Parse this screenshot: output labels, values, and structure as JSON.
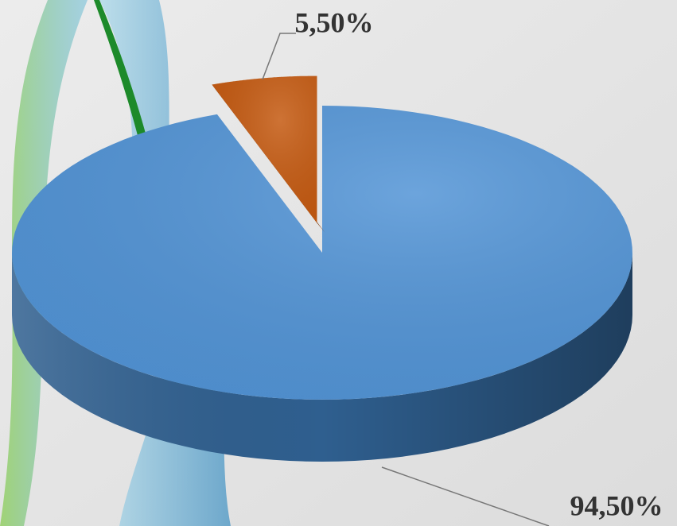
{
  "chart_data": {
    "type": "pie",
    "values": [
      94.5,
      5.5
    ],
    "value_labels": [
      "94,50%",
      "5,50%"
    ],
    "colors": [
      "#5294d6",
      "#c55a11"
    ],
    "side_colors": [
      "#2f5f8f",
      "#7a3608"
    ]
  }
}
